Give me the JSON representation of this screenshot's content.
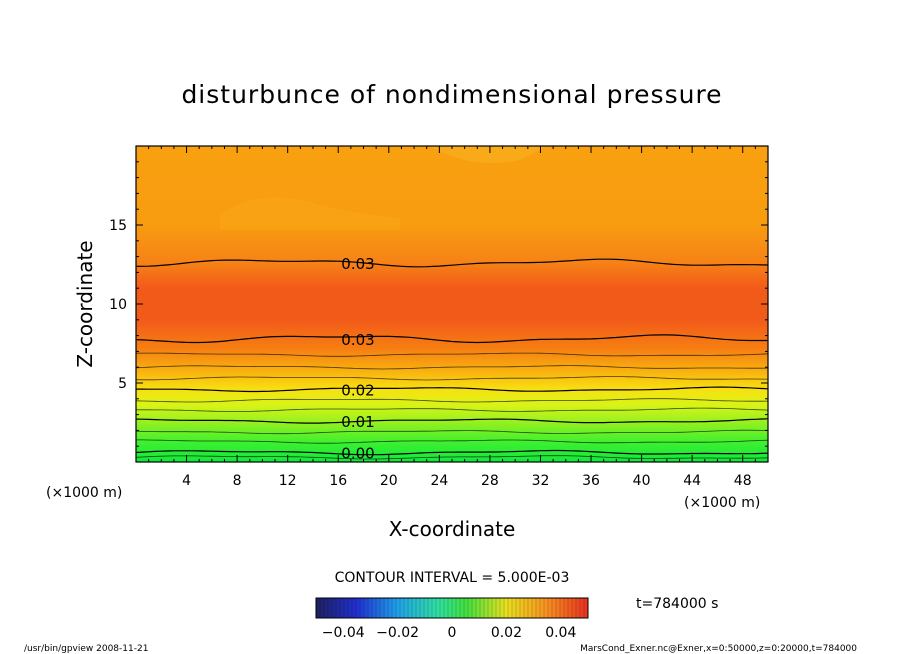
{
  "chart_data": {
    "type": "contour",
    "title": "disturbunce of nondimensional pressure",
    "xlabel": "X-coordinate",
    "ylabel": "Z-coordinate",
    "x_unit_left": "(×1000 m)",
    "x_unit_right": "(×1000 m)",
    "xlim": [
      0,
      50
    ],
    "ylim": [
      0,
      20
    ],
    "xticks": [
      "4",
      "8",
      "12",
      "16",
      "20",
      "24",
      "28",
      "32",
      "36",
      "40",
      "44",
      "48"
    ],
    "yticks": [
      "5",
      "10",
      "15"
    ],
    "contour_levels": [
      {
        "z": 0.6,
        "label": "0.00"
      },
      {
        "z": 2.6,
        "label": "0.01"
      },
      {
        "z": 4.6,
        "label": "0.02"
      },
      {
        "z": 7.8,
        "label": "0.03"
      },
      {
        "z": 12.6,
        "label": "0.03"
      }
    ],
    "contour_interval_text": "CONTOUR INTERVAL = 5.000E-03",
    "time_label": "t=784000  s",
    "colorbar_ticks": [
      "−0.04",
      "−0.02",
      "0",
      "0.02",
      "0.04"
    ],
    "colorbar_range": [
      -0.05,
      0.05
    ]
  },
  "footer": {
    "left": "/usr/bin/gpview   2008-11-21",
    "right": "MarsCond_Exner.nc@Exner,x=0:50000,z=0:20000,t=784000"
  },
  "colors": {
    "band_green": "#22e43a",
    "band_yellow": "#e8f020",
    "band_orange": "#f7a010",
    "band_red": "#f4641c"
  }
}
